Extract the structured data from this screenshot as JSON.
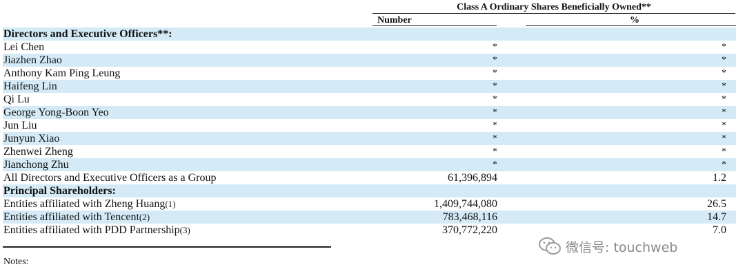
{
  "header": {
    "group_title": "Class A Ordinary Shares Beneficially Owned**",
    "col_number": "Number",
    "col_percent": "%"
  },
  "rows": [
    {
      "label": "Directors and Executive Officers**:",
      "number": "",
      "percent": "",
      "type": "section"
    },
    {
      "label": "Lei Chen",
      "number": "*",
      "percent": "*",
      "type": "data"
    },
    {
      "label": "Jiazhen Zhao",
      "number": "*",
      "percent": "*",
      "type": "data"
    },
    {
      "label": "Anthony Kam Ping Leung",
      "number": "*",
      "percent": "*",
      "type": "data"
    },
    {
      "label": "Haifeng Lin",
      "number": "*",
      "percent": "*",
      "type": "data"
    },
    {
      "label": "Qi Lu",
      "number": "*",
      "percent": "*",
      "type": "data"
    },
    {
      "label": "George Yong-Boon Yeo",
      "number": "*",
      "percent": "*",
      "type": "data"
    },
    {
      "label": "Jun Liu",
      "number": "*",
      "percent": "*",
      "type": "data"
    },
    {
      "label": "Junyun Xiao",
      "number": "*",
      "percent": "*",
      "type": "data"
    },
    {
      "label": "Zhenwei Zheng",
      "number": "*",
      "percent": "*",
      "type": "data"
    },
    {
      "label": "Jianchong Zhu",
      "number": "*",
      "percent": "*",
      "type": "data"
    },
    {
      "label": "All Directors and Executive Officers as a Group",
      "number": "61,396,894",
      "percent": "1.2",
      "type": "data"
    },
    {
      "label": "Principal Shareholders:",
      "number": "",
      "percent": "",
      "type": "section"
    },
    {
      "label": "Entities affiliated with Zheng Huang",
      "note": "(1)",
      "number": "1,409,744,080",
      "percent": "26.5",
      "type": "data"
    },
    {
      "label": "Entities affiliated with Tencent",
      "note": "(2)",
      "number": "783,468,116",
      "percent": "14.7",
      "type": "data"
    },
    {
      "label": "Entities affiliated with PDD Partnership",
      "note": "(3)",
      "number": "370,772,220",
      "percent": "7.0",
      "type": "data"
    }
  ],
  "footer": {
    "notes_label": "Notes:"
  },
  "watermark": {
    "text": "微信号: touchweb",
    "icon": "wechat-icon"
  }
}
